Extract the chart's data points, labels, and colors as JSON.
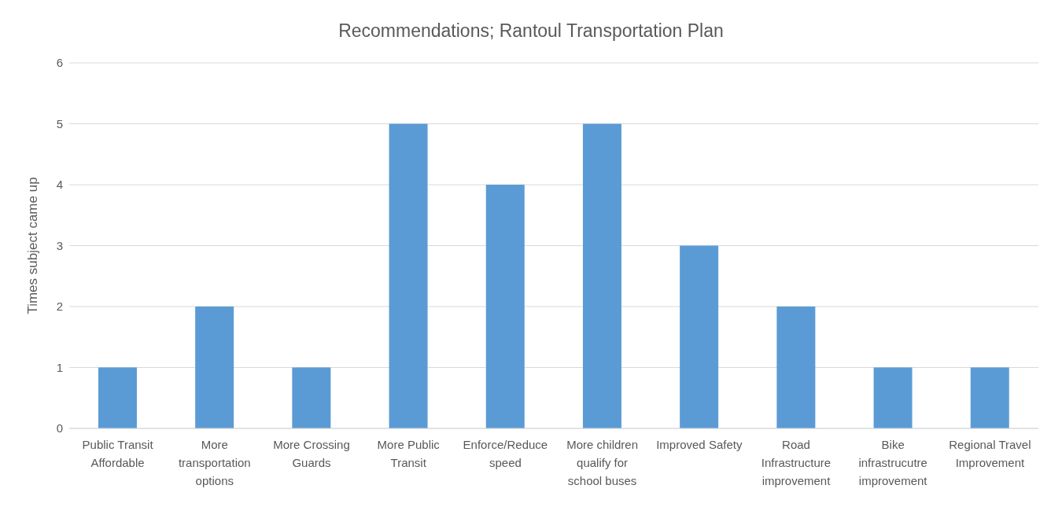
{
  "chart_data": {
    "type": "bar",
    "title": "Recommendations;  Rantoul Transportation Plan",
    "ylabel": "Times subject came up",
    "categories": [
      "Public Transit Affordable",
      "More transportation options",
      "More Crossing Guards",
      "More Public Transit",
      "Enforce/Reduce speed",
      "More children qualify for school buses",
      "Improved Safety",
      "Road Infrastructure improvement",
      "Bike infrastrucutre improvement",
      "Regional Travel Improvement"
    ],
    "values": [
      1,
      2,
      1,
      5,
      4,
      5,
      3,
      2,
      1,
      1
    ],
    "color": "#5b9bd5",
    "ylim": [
      0,
      6
    ],
    "yticks": [
      0,
      1,
      2,
      3,
      4,
      5,
      6
    ],
    "grid": "y",
    "legend": false
  }
}
